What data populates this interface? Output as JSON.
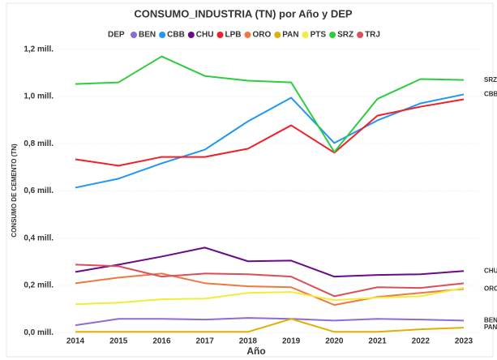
{
  "chart_data": {
    "type": "line",
    "title": "CONSUMO_INDUSTRIA (TN) por Año y DEP",
    "legend_title": "DEP",
    "legend_position": "top",
    "x_label": "Año",
    "y_label": "CONSUMO DE CEMENTO (TN)",
    "categories": [
      "2014",
      "2015",
      "2016",
      "2017",
      "2018",
      "2019",
      "2020",
      "2021",
      "2022",
      "2023"
    ],
    "ylim": [
      -20000,
      1220000
    ],
    "yticks": [
      {
        "value": 0,
        "label": "0,0 mill."
      },
      {
        "value": 200000,
        "label": "0,2 mill."
      },
      {
        "value": 400000,
        "label": "0,4 mill."
      },
      {
        "value": 600000,
        "label": "0,6 mill."
      },
      {
        "value": 800000,
        "label": "0,8 mill."
      },
      {
        "value": 1000000,
        "label": "1,0 mill."
      },
      {
        "value": 1200000,
        "label": "1,2 mill."
      }
    ],
    "grid": true,
    "series": [
      {
        "name": "BEN",
        "color": "#8e6bd1",
        "end_label": true,
        "values": [
          31000,
          58000,
          58000,
          55000,
          62000,
          58000,
          51000,
          58000,
          55000,
          51000
        ]
      },
      {
        "name": "CBB",
        "color": "#2196f3",
        "end_label": true,
        "values": [
          614000,
          652000,
          717000,
          775000,
          895000,
          995000,
          803000,
          899000,
          971000,
          1009000
        ]
      },
      {
        "name": "CHU",
        "color": "#6a0a8a",
        "end_label": true,
        "values": [
          257000,
          288000,
          322000,
          360000,
          302000,
          305000,
          237000,
          244000,
          247000,
          261000
        ]
      },
      {
        "name": "LPB",
        "color": "#f0202a",
        "end_label": false,
        "values": [
          734000,
          707000,
          744000,
          744000,
          779000,
          878000,
          762000,
          919000,
          957000,
          988000
        ]
      },
      {
        "name": "ORO",
        "color": "#f07840",
        "end_label": true,
        "values": [
          209000,
          233000,
          250000,
          209000,
          196000,
          192000,
          117000,
          151000,
          168000,
          185000
        ]
      },
      {
        "name": "PAN",
        "color": "#e0b000",
        "end_label": true,
        "values": [
          3000,
          3000,
          3000,
          3000,
          3000,
          58000,
          3000,
          3000,
          14000,
          21000
        ]
      },
      {
        "name": "PTS",
        "color": "#f2ec3a",
        "end_label": false,
        "values": [
          120000,
          127000,
          141000,
          144000,
          168000,
          172000,
          137000,
          148000,
          154000,
          189000
        ]
      },
      {
        "name": "SRZ",
        "color": "#2ecc40",
        "end_label": true,
        "values": [
          1053000,
          1060000,
          1170000,
          1087000,
          1067000,
          1060000,
          765000,
          990000,
          1074000,
          1070000
        ]
      },
      {
        "name": "TRJ",
        "color": "#d9505a",
        "end_label": false,
        "values": [
          288000,
          281000,
          237000,
          250000,
          247000,
          237000,
          154000,
          192000,
          189000,
          209000
        ]
      }
    ]
  }
}
